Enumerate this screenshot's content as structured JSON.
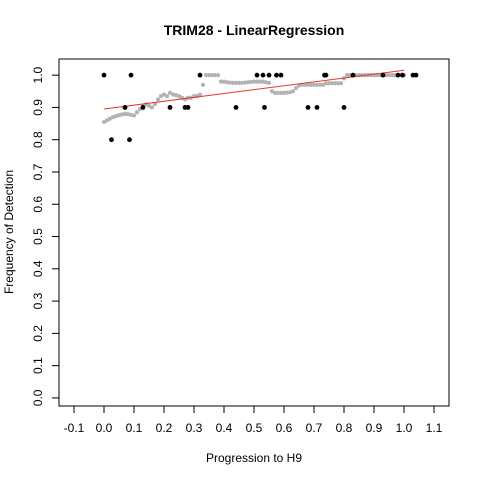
{
  "chart_data": {
    "type": "scatter",
    "title": "TRIM28 - LinearRegression",
    "xlabel": "Progression to H9",
    "ylabel": "Frequency of Detection",
    "xlim": [
      -0.15,
      1.15
    ],
    "ylim": [
      -0.025,
      1.05
    ],
    "x_ticks": [
      -0.1,
      0.0,
      0.1,
      0.2,
      0.3,
      0.4,
      0.5,
      0.6,
      0.7,
      0.8,
      0.9,
      1.0,
      1.1
    ],
    "x_tick_labels": [
      "-0.1",
      "0.0",
      "0.1",
      "0.2",
      "0.3",
      "0.4",
      "0.5",
      "0.6",
      "0.7",
      "0.8",
      "0.9",
      "1.0",
      "1.1"
    ],
    "y_ticks": [
      0.0,
      0.1,
      0.2,
      0.3,
      0.4,
      0.5,
      0.6,
      0.7,
      0.8,
      0.9,
      1.0
    ],
    "y_tick_labels": [
      "0.0",
      "0.1",
      "0.2",
      "0.3",
      "0.4",
      "0.5",
      "0.6",
      "0.7",
      "0.8",
      "0.9",
      "1.0"
    ],
    "grid": false,
    "legend": "none",
    "colors": {
      "observed": "#000000",
      "smoothed": "#b3b3b3",
      "fit": "#e8372b"
    },
    "series": [
      {
        "points": [
          [
            0.0,
            1.0
          ],
          [
            0.025,
            0.8
          ],
          [
            0.07,
            0.9
          ],
          [
            0.085,
            0.8
          ],
          [
            0.09,
            1.0
          ],
          [
            0.13,
            0.9
          ],
          [
            0.22,
            0.9
          ],
          [
            0.27,
            0.9
          ],
          [
            0.28,
            0.9
          ],
          [
            0.32,
            1.0
          ],
          [
            0.44,
            0.9
          ],
          [
            0.51,
            1.0
          ],
          [
            0.53,
            1.0
          ],
          [
            0.535,
            0.9
          ],
          [
            0.55,
            1.0
          ],
          [
            0.575,
            1.0
          ],
          [
            0.59,
            1.0
          ],
          [
            0.68,
            0.9
          ],
          [
            0.71,
            0.9
          ],
          [
            0.735,
            1.0
          ],
          [
            0.74,
            1.0
          ],
          [
            0.8,
            0.9
          ],
          [
            0.83,
            1.0
          ],
          [
            0.93,
            1.0
          ],
          [
            0.98,
            1.0
          ],
          [
            0.995,
            1.0
          ],
          [
            1.03,
            1.0
          ],
          [
            1.04,
            1.0
          ]
        ]
      },
      {
        "points": [
          [
            0.0,
            0.855
          ],
          [
            0.01,
            0.86
          ],
          [
            0.02,
            0.865
          ],
          [
            0.03,
            0.87
          ],
          [
            0.04,
            0.873
          ],
          [
            0.05,
            0.876
          ],
          [
            0.06,
            0.878
          ],
          [
            0.07,
            0.88
          ],
          [
            0.08,
            0.879
          ],
          [
            0.09,
            0.877
          ],
          [
            0.1,
            0.875
          ],
          [
            0.11,
            0.885
          ],
          [
            0.12,
            0.895
          ],
          [
            0.13,
            0.905
          ],
          [
            0.14,
            0.91
          ],
          [
            0.15,
            0.905
          ],
          [
            0.16,
            0.9
          ],
          [
            0.17,
            0.91
          ],
          [
            0.18,
            0.925
          ],
          [
            0.19,
            0.935
          ],
          [
            0.2,
            0.94
          ],
          [
            0.21,
            0.935
          ],
          [
            0.22,
            0.945
          ],
          [
            0.23,
            0.94
          ],
          [
            0.24,
            0.938
          ],
          [
            0.25,
            0.935
          ],
          [
            0.26,
            0.93
          ],
          [
            0.27,
            0.925
          ],
          [
            0.28,
            0.93
          ],
          [
            0.29,
            0.93
          ],
          [
            0.3,
            0.935
          ],
          [
            0.31,
            0.935
          ],
          [
            0.32,
            0.94
          ],
          [
            0.33,
            0.97
          ],
          [
            0.34,
            1.0
          ],
          [
            0.35,
            1.0
          ],
          [
            0.36,
            1.0
          ],
          [
            0.37,
            1.0
          ],
          [
            0.38,
            1.0
          ],
          [
            0.39,
            0.98
          ],
          [
            0.4,
            0.98
          ],
          [
            0.41,
            0.978
          ],
          [
            0.42,
            0.977
          ],
          [
            0.43,
            0.976
          ],
          [
            0.44,
            0.976
          ],
          [
            0.45,
            0.976
          ],
          [
            0.46,
            0.976
          ],
          [
            0.47,
            0.977
          ],
          [
            0.48,
            0.978
          ],
          [
            0.49,
            0.979
          ],
          [
            0.5,
            0.98
          ],
          [
            0.51,
            0.98
          ],
          [
            0.52,
            0.98
          ],
          [
            0.53,
            0.98
          ],
          [
            0.54,
            0.978
          ],
          [
            0.55,
            0.976
          ],
          [
            0.56,
            0.95
          ],
          [
            0.57,
            0.945
          ],
          [
            0.58,
            0.945
          ],
          [
            0.59,
            0.945
          ],
          [
            0.6,
            0.945
          ],
          [
            0.61,
            0.946
          ],
          [
            0.62,
            0.947
          ],
          [
            0.63,
            0.95
          ],
          [
            0.64,
            0.96
          ],
          [
            0.65,
            0.968
          ],
          [
            0.66,
            0.97
          ],
          [
            0.67,
            0.97
          ],
          [
            0.68,
            0.97
          ],
          [
            0.69,
            0.97
          ],
          [
            0.7,
            0.97
          ],
          [
            0.71,
            0.97
          ],
          [
            0.72,
            0.97
          ],
          [
            0.73,
            0.97
          ],
          [
            0.74,
            0.975
          ],
          [
            0.75,
            0.975
          ],
          [
            0.76,
            0.975
          ],
          [
            0.77,
            0.975
          ],
          [
            0.78,
            0.975
          ],
          [
            0.79,
            0.975
          ],
          [
            0.8,
            0.99
          ],
          [
            0.81,
            1.0
          ],
          [
            0.82,
            1.0
          ],
          [
            0.83,
            1.0
          ],
          [
            0.84,
            1.0
          ],
          [
            0.85,
            1.0
          ],
          [
            0.86,
            1.0
          ],
          [
            0.87,
            1.0
          ],
          [
            0.88,
            1.0
          ],
          [
            0.89,
            1.0
          ],
          [
            0.9,
            1.0
          ],
          [
            0.91,
            1.0
          ],
          [
            0.92,
            1.0
          ],
          [
            0.93,
            1.0
          ],
          [
            0.94,
            1.0
          ],
          [
            0.95,
            1.0
          ],
          [
            0.96,
            1.0
          ],
          [
            0.97,
            1.0
          ],
          [
            0.98,
            1.0
          ],
          [
            0.99,
            1.0
          ],
          [
            1.0,
            1.0
          ]
        ]
      },
      {
        "line": [
          [
            0.0,
            0.895
          ],
          [
            1.0,
            1.015
          ]
        ]
      }
    ]
  }
}
